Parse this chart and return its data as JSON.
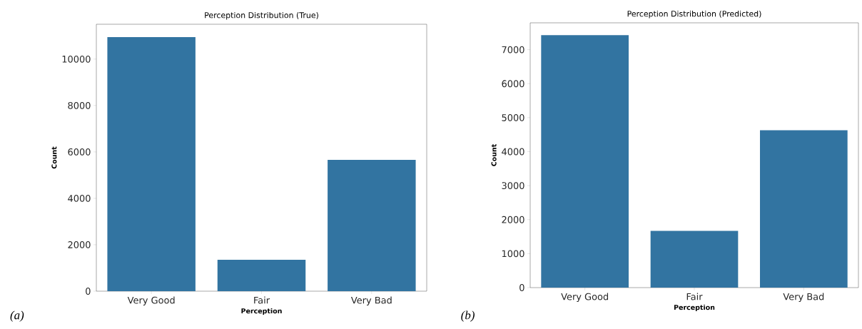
{
  "chart_data": [
    {
      "type": "bar",
      "title": "Perception Distribution (True)",
      "xlabel": "Perception",
      "ylabel": "Count",
      "categories": [
        "Very Good",
        "Fair",
        "Very Bad"
      ],
      "values": [
        10950,
        1350,
        5660
      ],
      "color": "#3274a1",
      "ylim": [
        0,
        11500
      ],
      "yticks": [
        0,
        2000,
        4000,
        6000,
        8000,
        10000
      ],
      "annotations": [
        "(a)"
      ]
    },
    {
      "type": "bar",
      "title": "Perception Distribution (Predicted)",
      "xlabel": "Perception",
      "ylabel": "Count",
      "categories": [
        "Very Good",
        "Fair",
        "Very Bad"
      ],
      "values": [
        7430,
        1670,
        4630
      ],
      "color": "#3274a1",
      "ylim": [
        0,
        7790
      ],
      "yticks": [
        0,
        1000,
        2000,
        3000,
        4000,
        5000,
        6000,
        7000
      ],
      "annotations": [
        "(b)"
      ]
    }
  ]
}
